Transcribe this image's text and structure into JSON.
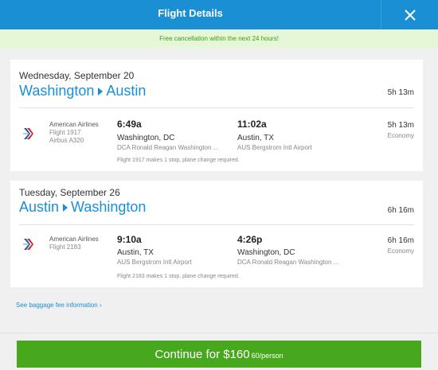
{
  "header": {
    "title": "Flight Details",
    "close_icon": "close-icon"
  },
  "notice": {
    "text": "Free cancellation within the next 24 hours!"
  },
  "trips": [
    {
      "date": "Wednesday, September 20",
      "origin": "Washington",
      "destination": "Austin",
      "total_duration": "5h 13m",
      "airline": {
        "name": "American Airlines",
        "flight": "Flight 1917",
        "aircraft": "Airbus A320",
        "logo_icon": "american-airlines-logo-icon"
      },
      "departure": {
        "time": "6:49a",
        "city": "Washington, DC",
        "airport": "DCA Ronald Reagan Washington ..."
      },
      "arrival": {
        "time": "11:02a",
        "city": "Austin, TX",
        "airport": "AUS Bergstrom Intl Airport"
      },
      "segment_duration": "5h 13m",
      "cabin": "Economy",
      "stop_note": "Flight 1917 makes 1 stop, plane change required."
    },
    {
      "date": "Tuesday, September 26",
      "origin": "Austin",
      "destination": "Washington",
      "total_duration": "6h 16m",
      "airline": {
        "name": "American Airlines",
        "flight": "Flight 2183",
        "logo_icon": "american-airlines-logo-icon"
      },
      "departure": {
        "time": "9:10a",
        "city": "Austin, TX",
        "airport": "AUS Bergstrom Intl Airport"
      },
      "arrival": {
        "time": "4:26p",
        "city": "Washington, DC",
        "airport": "DCA Ronald Reagan Washington ..."
      },
      "segment_duration": "6h 16m",
      "cabin": "Economy",
      "stop_note": "Flight 2183 makes 1 stop, plane change required."
    }
  ],
  "baggage_link": "See baggage fee information",
  "continue_button": {
    "label": "Continue for $160",
    "per_person": "60/person"
  },
  "colors": {
    "header": "#1a8fd4",
    "notice_bg": "#e6f7d8",
    "notice_text": "#3f9b1a",
    "link": "#1a8fd4",
    "cta": "#47a81d"
  }
}
